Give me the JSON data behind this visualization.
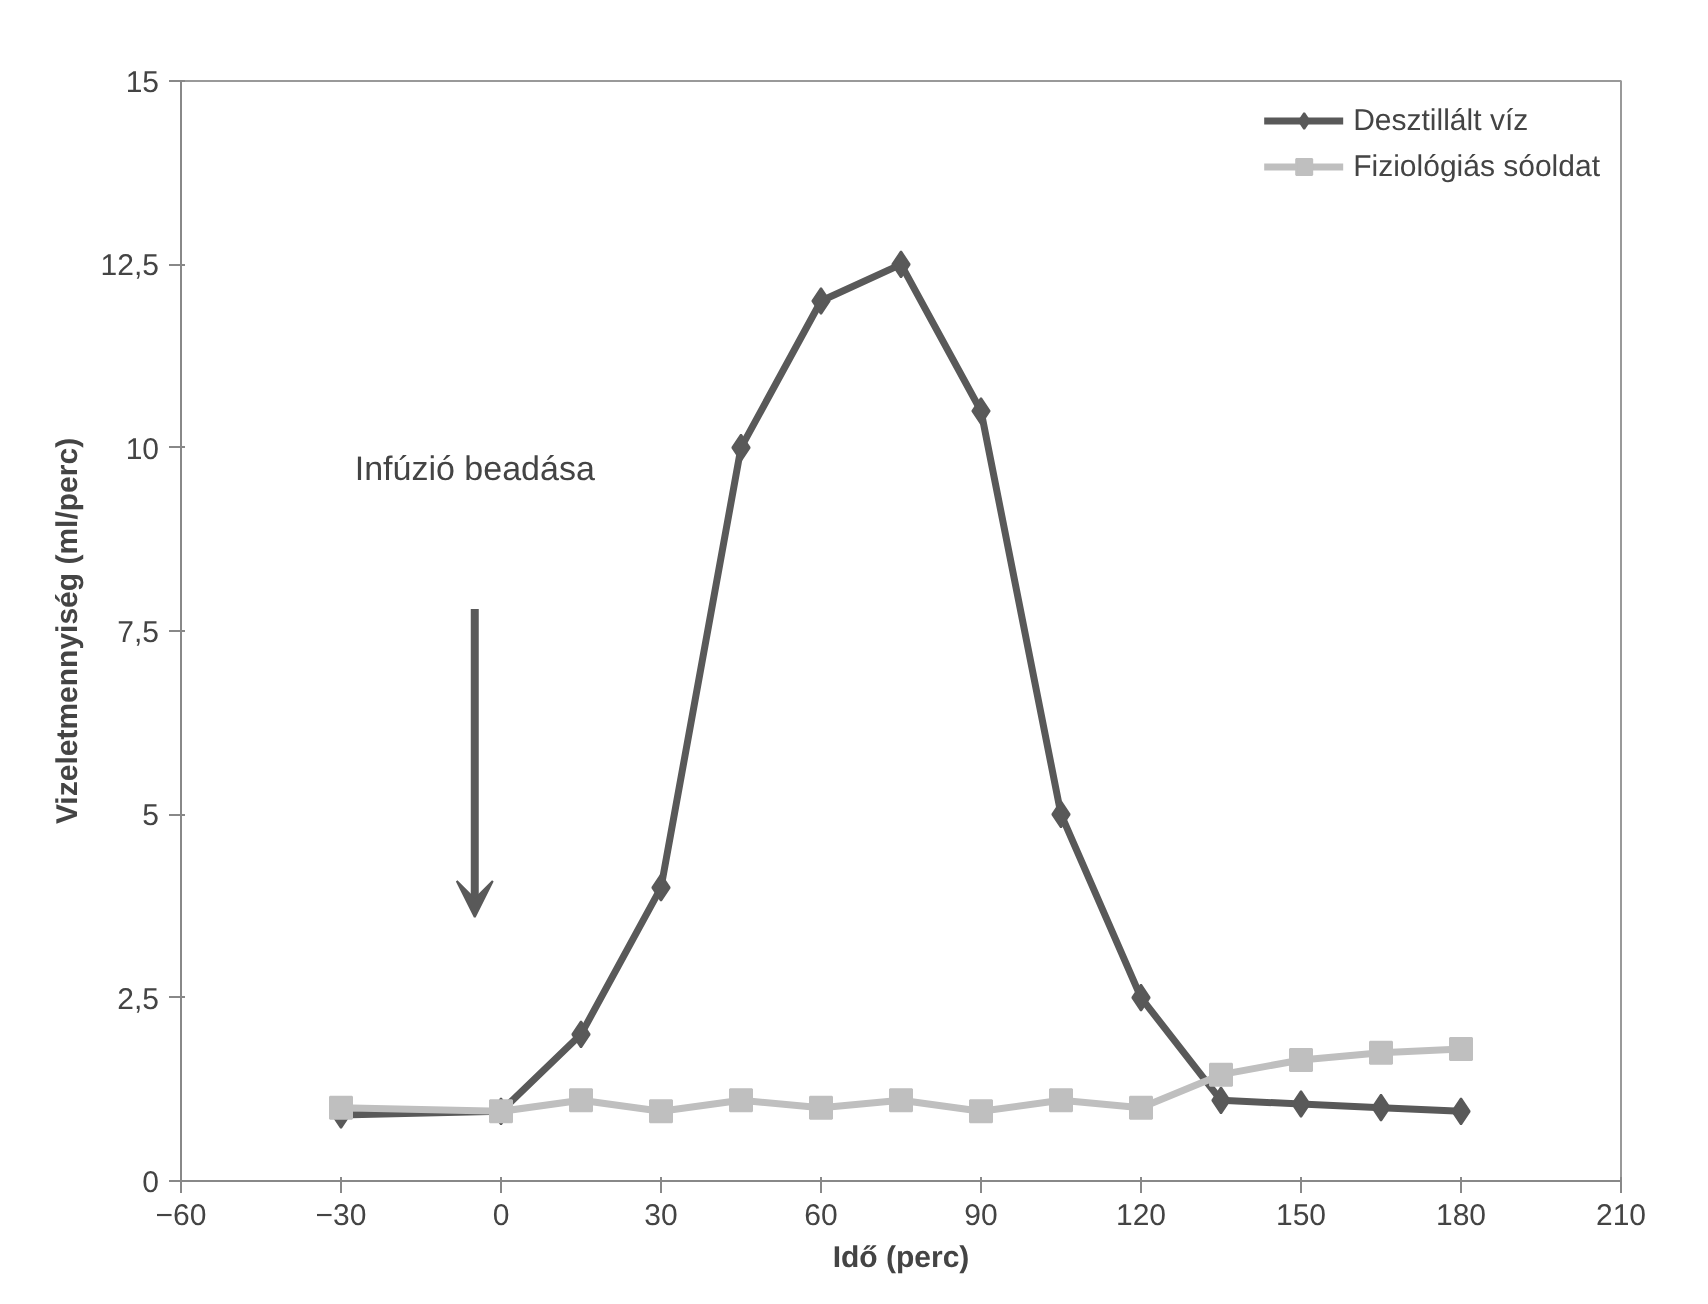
{
  "chart_data": {
    "type": "line",
    "xlabel": "Idő (perc)",
    "ylabel": "Vizeletmennyiség (ml/perc)",
    "x": [
      -30,
      0,
      15,
      30,
      45,
      60,
      75,
      90,
      105,
      120,
      135,
      150,
      165,
      180
    ],
    "xlim": [
      -60,
      210
    ],
    "xticks": [
      -60,
      -30,
      0,
      30,
      60,
      90,
      120,
      150,
      180,
      210
    ],
    "ylim": [
      0,
      15
    ],
    "yticks": [
      0,
      {
        "value": 2.5,
        "label": "2,5"
      },
      5,
      {
        "value": 7.5,
        "label": "7,5"
      },
      10,
      {
        "value": 12.5,
        "label": "12,5"
      },
      15
    ],
    "grid": false,
    "legend": "top right",
    "series": [
      {
        "name": "Desztillált víz",
        "color": "#595959",
        "marker": "diamond",
        "values": [
          0.9,
          0.95,
          2.0,
          4.0,
          10.0,
          12.0,
          12.5,
          10.5,
          5.0,
          2.5,
          1.1,
          1.05,
          1.0,
          0.95
        ]
      },
      {
        "name": "Fiziológiás sóoldat",
        "color": "#bfbfbf",
        "marker": "square",
        "values": [
          1.0,
          0.95,
          1.1,
          0.95,
          1.1,
          1.0,
          1.1,
          0.95,
          1.1,
          1.0,
          1.45,
          1.65,
          1.75,
          1.8
        ]
      }
    ],
    "annotations": [
      "Infúzió beadása"
    ]
  }
}
